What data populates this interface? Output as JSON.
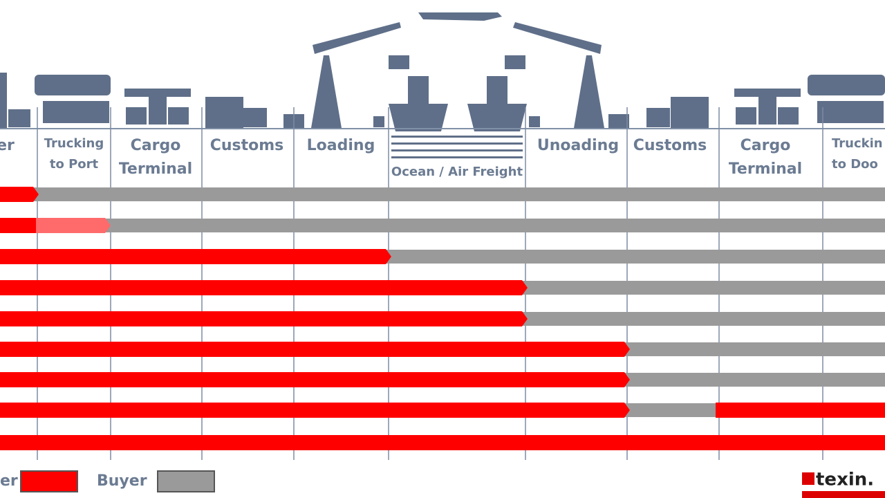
{
  "headers": [
    {
      "lines": [
        "er"
      ]
    },
    {
      "lines": [
        "Trucking",
        "to Port"
      ]
    },
    {
      "lines": [
        "Cargo",
        "Terminal"
      ]
    },
    {
      "lines": [
        "Customs"
      ]
    },
    {
      "lines": [
        "Loading"
      ]
    },
    {
      "lines": [
        "Ocean / Air Freight"
      ]
    },
    {
      "lines": [
        "Unoading"
      ]
    },
    {
      "lines": [
        "Customs"
      ]
    },
    {
      "lines": [
        "Cargo",
        "Terminal"
      ]
    },
    {
      "lines": [
        "Truckin",
        "to Doo"
      ]
    }
  ],
  "legend": {
    "seller": "er",
    "buyer": "Buyer"
  },
  "logo": "texin."
}
